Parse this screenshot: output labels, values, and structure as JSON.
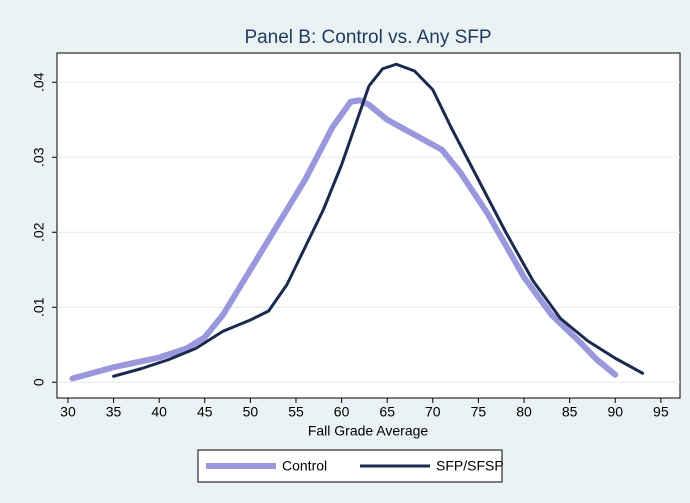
{
  "chart_data": {
    "type": "line",
    "title": "Panel B: Control vs. Any SFP",
    "x_label": "Fall Grade Average",
    "xlim": [
      28.8,
      97.1
    ],
    "xticks": [
      30,
      35,
      40,
      45,
      50,
      55,
      60,
      65,
      70,
      75,
      80,
      85,
      90,
      95
    ],
    "ylim": [
      -0.0021,
      0.0439
    ],
    "yticks": [
      0,
      {
        "value": 0.01,
        "label": ".01"
      },
      {
        "value": 0.02,
        "label": ".02"
      },
      {
        "value": 0.03,
        "label": ".03"
      },
      {
        "value": 0.04,
        "label": ".04"
      }
    ],
    "grid": true,
    "legend": "bottom",
    "series": [
      {
        "name": "Control",
        "color": "#9a98dc",
        "width": 6,
        "x": [
          30.5,
          32,
          35,
          40,
          43,
          45,
          47,
          50,
          53,
          56,
          59,
          61,
          62,
          63,
          65,
          68,
          71,
          73,
          76,
          80,
          83,
          86,
          88,
          90
        ],
        "values": [
          0.0005,
          0.001,
          0.002,
          0.0033,
          0.0045,
          0.006,
          0.009,
          0.015,
          0.021,
          0.027,
          0.034,
          0.0374,
          0.0376,
          0.037,
          0.035,
          0.033,
          0.031,
          0.028,
          0.0225,
          0.014,
          0.009,
          0.0055,
          0.003,
          0.001
        ]
      },
      {
        "name": "SFP/SFSP",
        "color": "#1a2a4e",
        "width": 3,
        "x": [
          35,
          38,
          41,
          44,
          47,
          50,
          52,
          54,
          56,
          58,
          60,
          62,
          63,
          64.5,
          66,
          68,
          70,
          72,
          75,
          78,
          81,
          84,
          87,
          90,
          93
        ],
        "values": [
          0.0008,
          0.0018,
          0.003,
          0.0045,
          0.0068,
          0.0083,
          0.0095,
          0.013,
          0.018,
          0.023,
          0.029,
          0.036,
          0.0395,
          0.0418,
          0.0424,
          0.0415,
          0.039,
          0.034,
          0.027,
          0.02,
          0.0135,
          0.0085,
          0.0055,
          0.0032,
          0.0012
        ]
      }
    ]
  }
}
